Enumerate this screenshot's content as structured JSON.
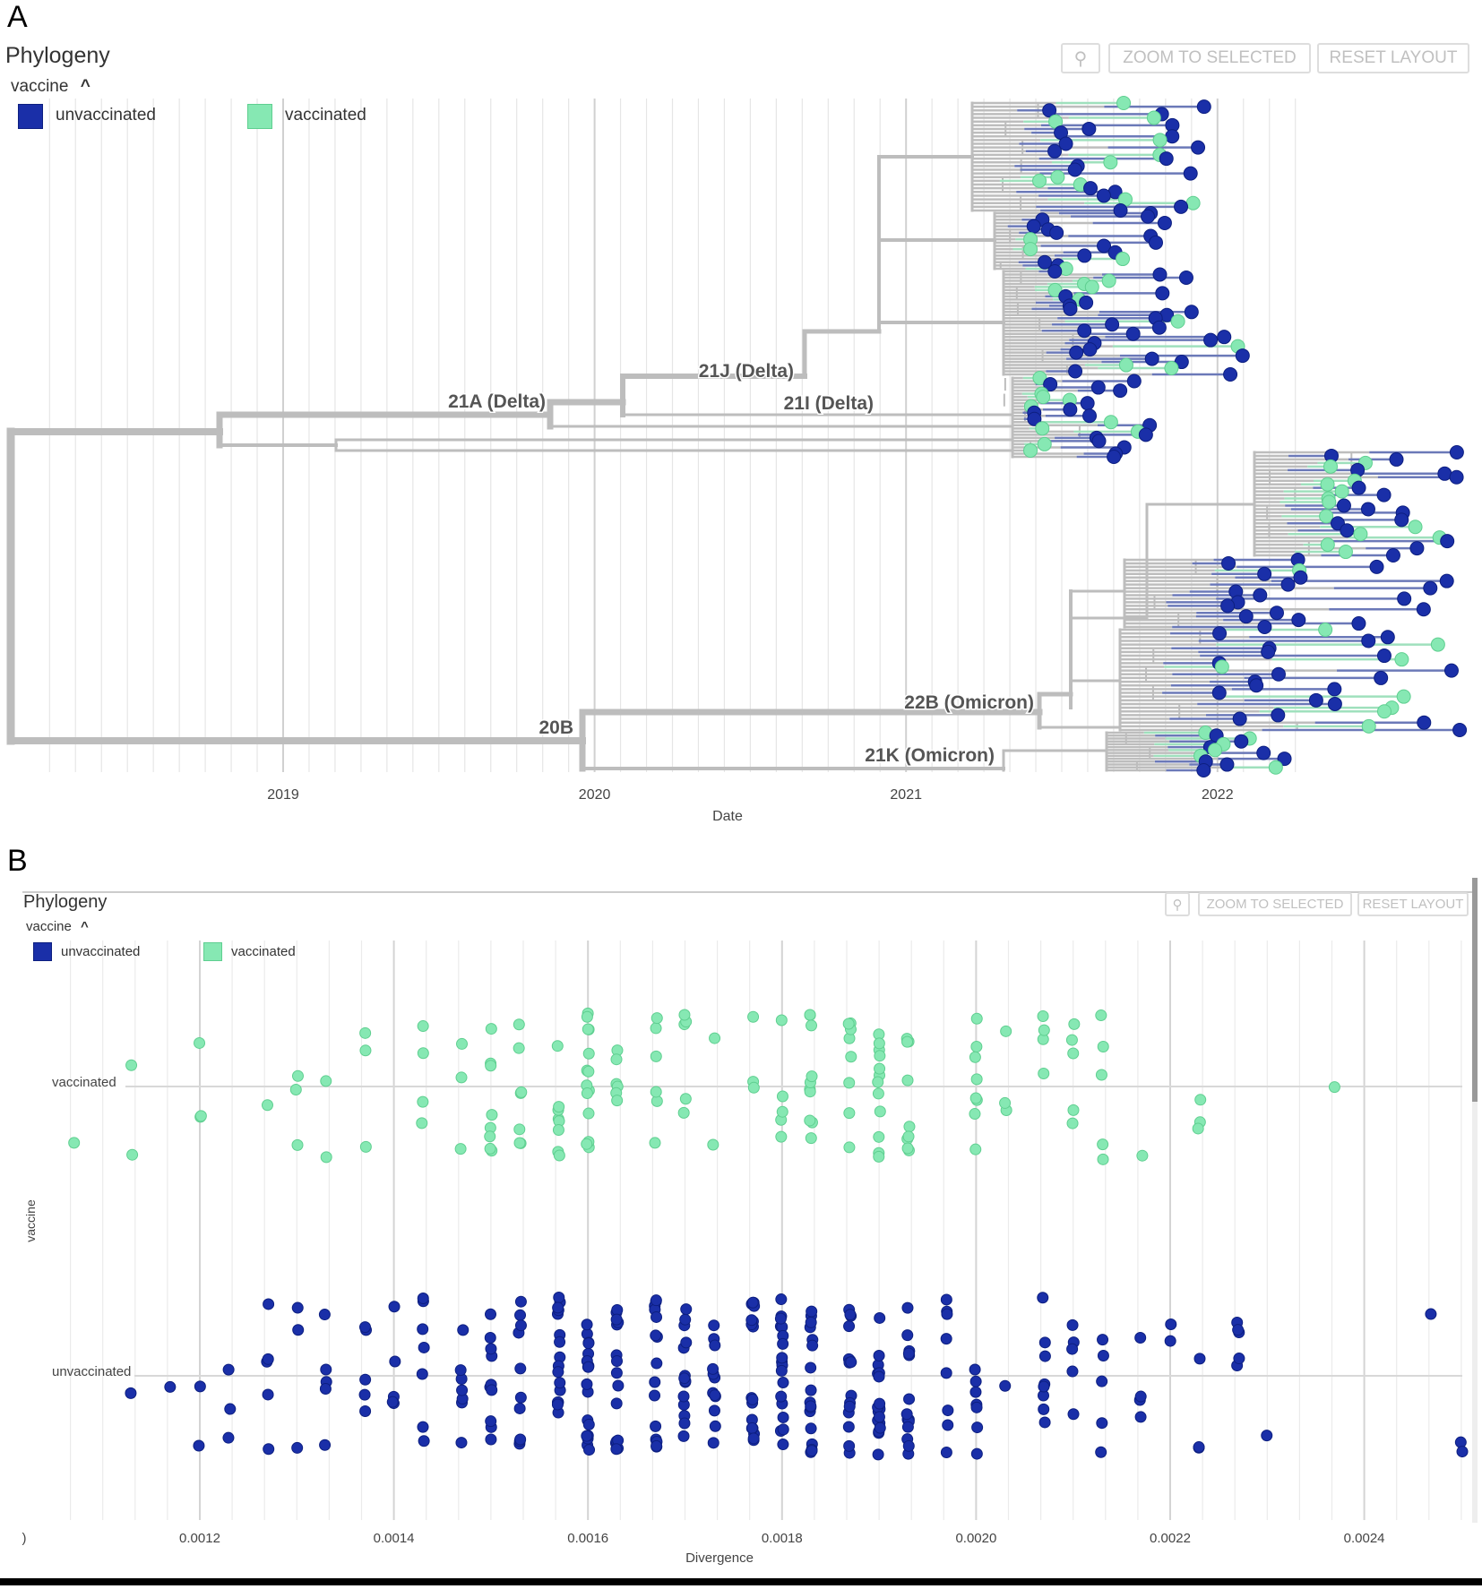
{
  "panel_a": {
    "letter": "A",
    "title": "Phylogeny",
    "color_by": "vaccine",
    "zoom_icon": "magnifier-icon",
    "collapse_icon": "chevron-up-icon",
    "zoom_to_selected": "ZOOM TO SELECTED",
    "reset_layout": "RESET LAYOUT",
    "legend": [
      {
        "label": "unvaccinated",
        "color": "#1a2fa8"
      },
      {
        "label": "vaccinated",
        "color": "#86e8b3"
      }
    ]
  },
  "panel_b": {
    "letter": "B",
    "title": "Phylogeny",
    "color_by": "vaccine",
    "zoom_icon": "magnifier-icon",
    "collapse_icon": "chevron-up-icon",
    "zoom_to_selected": "ZOOM TO SELECTED",
    "reset_layout": "RESET LAYOUT",
    "legend": [
      {
        "label": "unvaccinated",
        "color": "#1a2fa8"
      },
      {
        "label": "vaccinated",
        "color": "#86e8b3"
      }
    ]
  },
  "chart_data": [
    {
      "type": "tree",
      "xlabel": "Date",
      "x_ticks": [
        "2019",
        "2020",
        "2021",
        "2022"
      ],
      "grid": true,
      "legend_placement": "top-left",
      "clade_labels": [
        "21A (Delta)",
        "21J (Delta)",
        "21I (Delta)",
        "20B",
        "22B (Omicron)",
        "21K (Omicron)"
      ],
      "series": [
        {
          "name": "unvaccinated",
          "color": "#1a2fa8"
        },
        {
          "name": "vaccinated",
          "color": "#86e8b3"
        }
      ]
    },
    {
      "type": "scatter",
      "xlabel": "Divergence",
      "ylabel": "vaccine",
      "x_ticks": [
        ")",
        "0.0012",
        "0.0014",
        "0.0016",
        "0.0018",
        "0.0020",
        "0.0022",
        "0.0024"
      ],
      "categories": [
        "vaccinated",
        "unvaccinated"
      ],
      "xlim": [
        0.00104,
        0.00251
      ],
      "grid": true,
      "legend_placement": "top-left",
      "series": [
        {
          "name": "vaccinated",
          "color": "#86e8b3",
          "points": [
            {
              "divergence": 0.00107,
              "count": 1
            },
            {
              "divergence": 0.00113,
              "count": 2
            },
            {
              "divergence": 0.0012,
              "count": 3
            },
            {
              "divergence": 0.00127,
              "count": 1
            },
            {
              "divergence": 0.0013,
              "count": 3
            },
            {
              "divergence": 0.00133,
              "count": 2
            },
            {
              "divergence": 0.00137,
              "count": 3
            },
            {
              "divergence": 0.00143,
              "count": 4
            },
            {
              "divergence": 0.00147,
              "count": 3
            },
            {
              "divergence": 0.0015,
              "count": 8
            },
            {
              "divergence": 0.00153,
              "count": 7
            },
            {
              "divergence": 0.00157,
              "count": 8
            },
            {
              "divergence": 0.0016,
              "count": 14
            },
            {
              "divergence": 0.00163,
              "count": 6
            },
            {
              "divergence": 0.00167,
              "count": 6
            },
            {
              "divergence": 0.0017,
              "count": 5
            },
            {
              "divergence": 0.00173,
              "count": 2
            },
            {
              "divergence": 0.00177,
              "count": 3
            },
            {
              "divergence": 0.0018,
              "count": 5
            },
            {
              "divergence": 0.00183,
              "count": 10
            },
            {
              "divergence": 0.00187,
              "count": 8
            },
            {
              "divergence": 0.0019,
              "count": 12
            },
            {
              "divergence": 0.00193,
              "count": 9
            },
            {
              "divergence": 0.002,
              "count": 8
            },
            {
              "divergence": 0.00203,
              "count": 3
            },
            {
              "divergence": 0.00207,
              "count": 4
            },
            {
              "divergence": 0.0021,
              "count": 5
            },
            {
              "divergence": 0.00213,
              "count": 5
            },
            {
              "divergence": 0.00217,
              "count": 1
            },
            {
              "divergence": 0.00223,
              "count": 3
            },
            {
              "divergence": 0.00237,
              "count": 1
            }
          ]
        },
        {
          "name": "unvaccinated",
          "color": "#1a2fa8",
          "points": [
            {
              "divergence": 0.00113,
              "count": 1
            },
            {
              "divergence": 0.00117,
              "count": 1
            },
            {
              "divergence": 0.0012,
              "count": 2
            },
            {
              "divergence": 0.00123,
              "count": 3
            },
            {
              "divergence": 0.00127,
              "count": 5
            },
            {
              "divergence": 0.0013,
              "count": 3
            },
            {
              "divergence": 0.00133,
              "count": 5
            },
            {
              "divergence": 0.00137,
              "count": 5
            },
            {
              "divergence": 0.0014,
              "count": 5
            },
            {
              "divergence": 0.00143,
              "count": 7
            },
            {
              "divergence": 0.00147,
              "count": 7
            },
            {
              "divergence": 0.0015,
              "count": 10
            },
            {
              "divergence": 0.00153,
              "count": 10
            },
            {
              "divergence": 0.00157,
              "count": 16
            },
            {
              "divergence": 0.0016,
              "count": 18
            },
            {
              "divergence": 0.00163,
              "count": 16
            },
            {
              "divergence": 0.00167,
              "count": 15
            },
            {
              "divergence": 0.0017,
              "count": 14
            },
            {
              "divergence": 0.00173,
              "count": 12
            },
            {
              "divergence": 0.00177,
              "count": 20
            },
            {
              "divergence": 0.0018,
              "count": 18
            },
            {
              "divergence": 0.00183,
              "count": 17
            },
            {
              "divergence": 0.00187,
              "count": 15
            },
            {
              "divergence": 0.0019,
              "count": 18
            },
            {
              "divergence": 0.00193,
              "count": 14
            },
            {
              "divergence": 0.00197,
              "count": 8
            },
            {
              "divergence": 0.002,
              "count": 7
            },
            {
              "divergence": 0.00203,
              "count": 1
            },
            {
              "divergence": 0.00207,
              "count": 8
            },
            {
              "divergence": 0.0021,
              "count": 5
            },
            {
              "divergence": 0.00213,
              "count": 5
            },
            {
              "divergence": 0.00217,
              "count": 4
            },
            {
              "divergence": 0.0022,
              "count": 2
            },
            {
              "divergence": 0.00223,
              "count": 3
            },
            {
              "divergence": 0.00227,
              "count": 5
            },
            {
              "divergence": 0.0023,
              "count": 1
            },
            {
              "divergence": 0.00247,
              "count": 1
            },
            {
              "divergence": 0.0025,
              "count": 2
            }
          ]
        }
      ]
    }
  ]
}
